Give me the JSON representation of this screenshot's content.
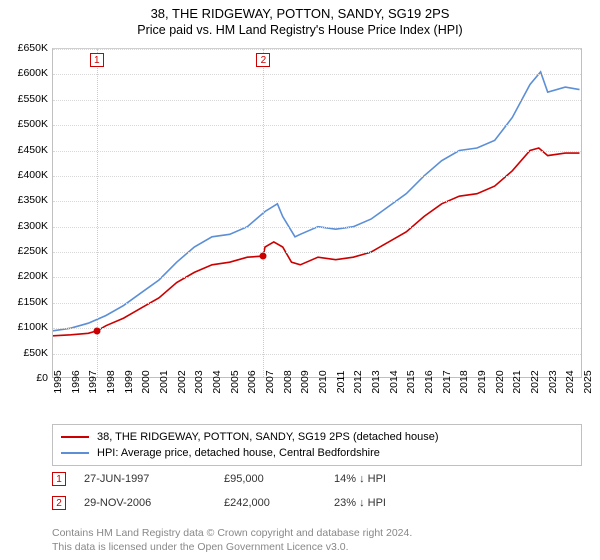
{
  "title_line1": "38, THE RIDGEWAY, POTTON, SANDY, SG19 2PS",
  "title_line2": "Price paid vs. HM Land Registry's House Price Index (HPI)",
  "chart": {
    "type": "line",
    "background_color": "#ffffff",
    "grid_color": "#d8d8d8",
    "border_color": "#c0c0c0",
    "x_years": [
      1995,
      1996,
      1997,
      1998,
      1999,
      2000,
      2001,
      2002,
      2003,
      2004,
      2005,
      2006,
      2007,
      2008,
      2009,
      2010,
      2011,
      2012,
      2013,
      2014,
      2015,
      2016,
      2017,
      2018,
      2019,
      2020,
      2021,
      2022,
      2023,
      2024,
      2025
    ],
    "ylim": [
      0,
      650000
    ],
    "ytick_step": 50000,
    "ytick_labels": [
      "£0",
      "£50K",
      "£100K",
      "£150K",
      "£200K",
      "£250K",
      "£300K",
      "£350K",
      "£400K",
      "£450K",
      "£500K",
      "£550K",
      "£600K",
      "£650K"
    ],
    "title_fontsize": 13,
    "label_fontsize": 10.5,
    "line_width": 1.6,
    "series": [
      {
        "name": "property",
        "color": "#cc0000",
        "label": "38, THE RIDGEWAY, POTTON, SANDY, SG19 2PS (detached house)",
        "points": [
          [
            1995,
            85000
          ],
          [
            1996,
            87000
          ],
          [
            1997,
            90000
          ],
          [
            1997.5,
            95000
          ],
          [
            1998,
            105000
          ],
          [
            1999,
            120000
          ],
          [
            2000,
            140000
          ],
          [
            2001,
            160000
          ],
          [
            2002,
            190000
          ],
          [
            2003,
            210000
          ],
          [
            2004,
            225000
          ],
          [
            2005,
            230000
          ],
          [
            2006,
            240000
          ],
          [
            2006.9,
            242000
          ],
          [
            2007,
            260000
          ],
          [
            2007.5,
            270000
          ],
          [
            2008,
            260000
          ],
          [
            2008.5,
            230000
          ],
          [
            2009,
            225000
          ],
          [
            2010,
            240000
          ],
          [
            2011,
            235000
          ],
          [
            2012,
            240000
          ],
          [
            2013,
            250000
          ],
          [
            2014,
            270000
          ],
          [
            2015,
            290000
          ],
          [
            2016,
            320000
          ],
          [
            2017,
            345000
          ],
          [
            2018,
            360000
          ],
          [
            2019,
            365000
          ],
          [
            2020,
            380000
          ],
          [
            2021,
            410000
          ],
          [
            2022,
            450000
          ],
          [
            2022.5,
            455000
          ],
          [
            2023,
            440000
          ],
          [
            2024,
            445000
          ],
          [
            2024.8,
            445000
          ]
        ]
      },
      {
        "name": "hpi",
        "color": "#5b8fd6",
        "label": "HPI: Average price, detached house, Central Bedfordshire",
        "points": [
          [
            1995,
            95000
          ],
          [
            1996,
            100000
          ],
          [
            1997,
            110000
          ],
          [
            1998,
            125000
          ],
          [
            1999,
            145000
          ],
          [
            2000,
            170000
          ],
          [
            2001,
            195000
          ],
          [
            2002,
            230000
          ],
          [
            2003,
            260000
          ],
          [
            2004,
            280000
          ],
          [
            2005,
            285000
          ],
          [
            2006,
            300000
          ],
          [
            2007,
            330000
          ],
          [
            2007.7,
            345000
          ],
          [
            2008,
            320000
          ],
          [
            2008.7,
            280000
          ],
          [
            2009,
            285000
          ],
          [
            2010,
            300000
          ],
          [
            2011,
            295000
          ],
          [
            2012,
            300000
          ],
          [
            2013,
            315000
          ],
          [
            2014,
            340000
          ],
          [
            2015,
            365000
          ],
          [
            2016,
            400000
          ],
          [
            2017,
            430000
          ],
          [
            2018,
            450000
          ],
          [
            2019,
            455000
          ],
          [
            2020,
            470000
          ],
          [
            2021,
            515000
          ],
          [
            2022,
            580000
          ],
          [
            2022.6,
            605000
          ],
          [
            2023,
            565000
          ],
          [
            2024,
            575000
          ],
          [
            2024.8,
            570000
          ]
        ]
      }
    ],
    "sale_markers": [
      {
        "n": "1",
        "year": 1997.48,
        "price": 95000,
        "line_color": "#f4b8b8"
      },
      {
        "n": "2",
        "year": 2006.91,
        "price": 242000,
        "line_color": "#f4b8b8"
      }
    ],
    "dot_color": "#cc0000"
  },
  "legend_border": "#c0c0c0",
  "sales": [
    {
      "n": "1",
      "date": "27-JUN-1997",
      "price": "£95,000",
      "pct": "14%",
      "arrow": "↓",
      "vs": "HPI"
    },
    {
      "n": "2",
      "date": "29-NOV-2006",
      "price": "£242,000",
      "pct": "23%",
      "arrow": "↓",
      "vs": "HPI"
    }
  ],
  "footer_line1": "Contains HM Land Registry data © Crown copyright and database right 2024.",
  "footer_line2": "This data is licensed under the Open Government Licence v3.0."
}
